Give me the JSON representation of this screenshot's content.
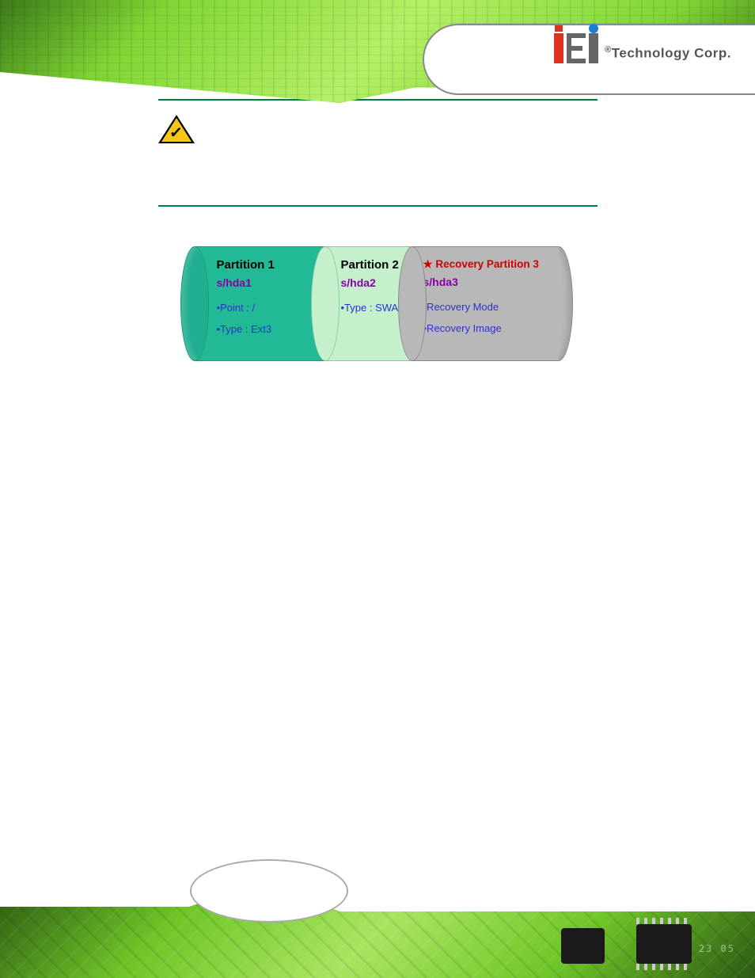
{
  "header": {
    "logo_text": "Technology Corp.",
    "logo_reg": "®"
  },
  "diagram": {
    "type": "infographic",
    "background_color": "#ffffff",
    "divider_color": "#008040",
    "partitions": [
      {
        "title": "Partition 1",
        "sub": "s/hda1",
        "items": [
          "•Point : /",
          "•Type : Ext3"
        ],
        "bg_color": "#22b996",
        "title_color": "#000000",
        "sub_color": "#8800aa",
        "item_color": "#3030d0"
      },
      {
        "title": "Partition 2",
        "sub": "s/hda2",
        "items": [
          "•Type : SWAP"
        ],
        "bg_color": "#c5f0cc",
        "title_color": "#000000",
        "sub_color": "#8800aa",
        "item_color": "#3030d0"
      },
      {
        "title": "★ Recovery Partition 3",
        "sub": "s/hda3",
        "items": [
          "•Recovery Mode",
          "•Recovery Image"
        ],
        "bg_color": "#b8b8b8",
        "title_color": "#d00000",
        "sub_color": "#8800aa",
        "item_color": "#3030d0"
      }
    ],
    "font_sizes": {
      "title": 15,
      "sub": 14,
      "item": 13
    },
    "cylinder_width": 500,
    "cylinder_height": 145
  },
  "footer": {
    "numbers": "23 05"
  }
}
